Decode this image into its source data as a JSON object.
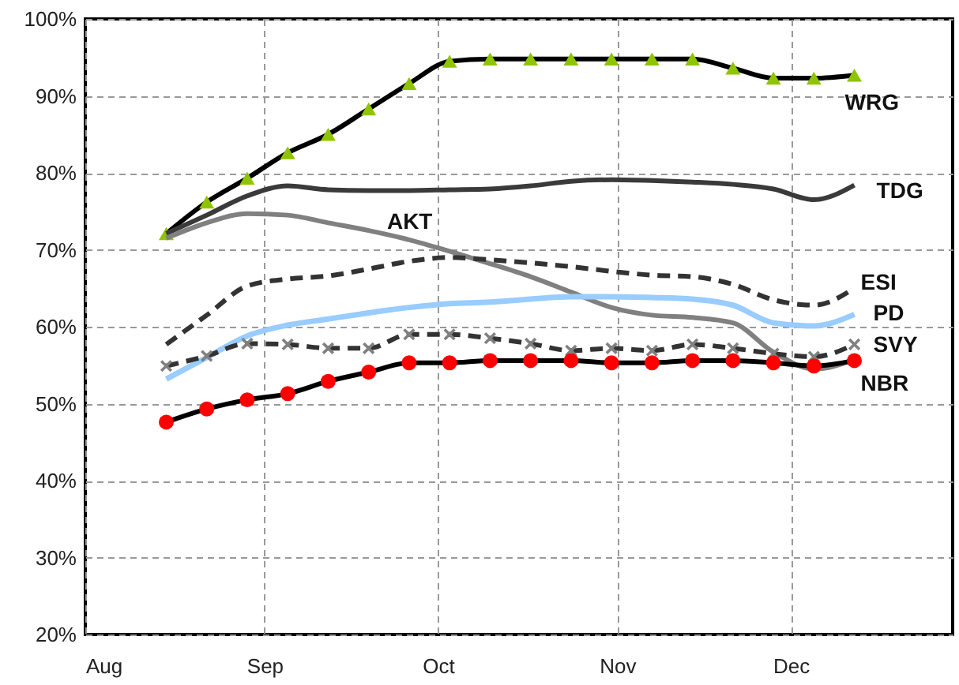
{
  "chart_data": {
    "type": "line",
    "x": [
      "--08-15",
      "--08-22",
      "--08-29",
      "--09-05",
      "--09-12",
      "--09-19",
      "--09-26",
      "--10-03",
      "--10-10",
      "--10-17",
      "--10-24",
      "--10-31",
      "--11-07",
      "--11-14",
      "--11-21",
      "--11-28",
      "--12-05",
      "--12-12"
    ],
    "xlim": [
      "--08-01",
      "--12-29"
    ],
    "xticks": [
      {
        "value": "--08-01",
        "label": "Aug"
      },
      {
        "value": "--09-01",
        "label": "Sep"
      },
      {
        "value": "--10-01",
        "label": "Oct"
      },
      {
        "value": "--11-01",
        "label": "Nov"
      },
      {
        "value": "--12-01",
        "label": "Dec"
      }
    ],
    "ylim": [
      20,
      100
    ],
    "yticks": [
      {
        "value": 20,
        "label": "20%"
      },
      {
        "value": 30,
        "label": "30%"
      },
      {
        "value": 40,
        "label": "40%"
      },
      {
        "value": 50,
        "label": "50%"
      },
      {
        "value": 60,
        "label": "60%"
      },
      {
        "value": 70,
        "label": "70%"
      },
      {
        "value": 80,
        "label": "80%"
      },
      {
        "value": 90,
        "label": "90%"
      },
      {
        "value": 100,
        "label": "100%"
      }
    ],
    "grid": true,
    "series": [
      {
        "name": "WRG",
        "color": "#000000",
        "marker": "triangle",
        "line_style": "solid",
        "values": [
          72.1,
          76.2,
          79.3,
          82.6,
          85.0,
          88.3,
          91.6,
          94.5,
          94.8,
          94.8,
          94.8,
          94.8,
          94.8,
          94.8,
          93.6,
          92.3,
          92.3,
          92.7
        ]
      },
      {
        "name": "TDG",
        "color": "#3a3a3a",
        "marker": "none",
        "line_style": "solid",
        "values": [
          72.1,
          74.5,
          77.0,
          78.3,
          77.8,
          77.7,
          77.7,
          77.8,
          77.9,
          78.3,
          78.9,
          79.1,
          79.0,
          78.8,
          78.5,
          77.9,
          76.5,
          78.4
        ]
      },
      {
        "name": "AKT",
        "color": "#808080",
        "marker": "none",
        "line_style": "solid",
        "values": [
          71.5,
          73.5,
          74.7,
          74.5,
          73.5,
          72.5,
          71.3,
          69.8,
          68.2,
          66.5,
          64.5,
          62.5,
          61.5,
          61.2,
          60.5,
          56.7,
          54.5,
          55.7
        ]
      },
      {
        "name": "ESI",
        "color": "#333333",
        "marker": "none",
        "line_style": "dashed",
        "values": [
          57.7,
          61.5,
          65.3,
          66.2,
          66.6,
          67.5,
          68.5,
          69.0,
          68.7,
          68.3,
          67.8,
          67.2,
          66.7,
          66.5,
          65.5,
          63.5,
          62.8,
          65.0
        ]
      },
      {
        "name": "PD",
        "color": "#99ccff",
        "marker": "none",
        "line_style": "solid",
        "values": [
          53.2,
          56.0,
          58.8,
          60.2,
          61.0,
          61.8,
          62.5,
          63.0,
          63.2,
          63.6,
          63.9,
          63.9,
          63.8,
          63.6,
          62.8,
          60.5,
          60.1,
          61.6
        ]
      },
      {
        "name": "SVY",
        "color": "#333333",
        "marker": "cross",
        "line_style": "dashed",
        "values": [
          54.9,
          56.2,
          57.8,
          57.7,
          57.2,
          57.2,
          59.0,
          59.0,
          58.5,
          57.8,
          56.9,
          57.2,
          56.9,
          57.7,
          57.2,
          56.5,
          56.1,
          57.7
        ]
      },
      {
        "name": "NBR",
        "color": "#000000",
        "marker": "circle",
        "line_style": "solid",
        "values": [
          47.6,
          49.3,
          50.5,
          51.3,
          52.9,
          54.1,
          55.3,
          55.3,
          55.6,
          55.6,
          55.6,
          55.3,
          55.3,
          55.6,
          55.6,
          55.3,
          54.9,
          55.6
        ]
      }
    ]
  }
}
